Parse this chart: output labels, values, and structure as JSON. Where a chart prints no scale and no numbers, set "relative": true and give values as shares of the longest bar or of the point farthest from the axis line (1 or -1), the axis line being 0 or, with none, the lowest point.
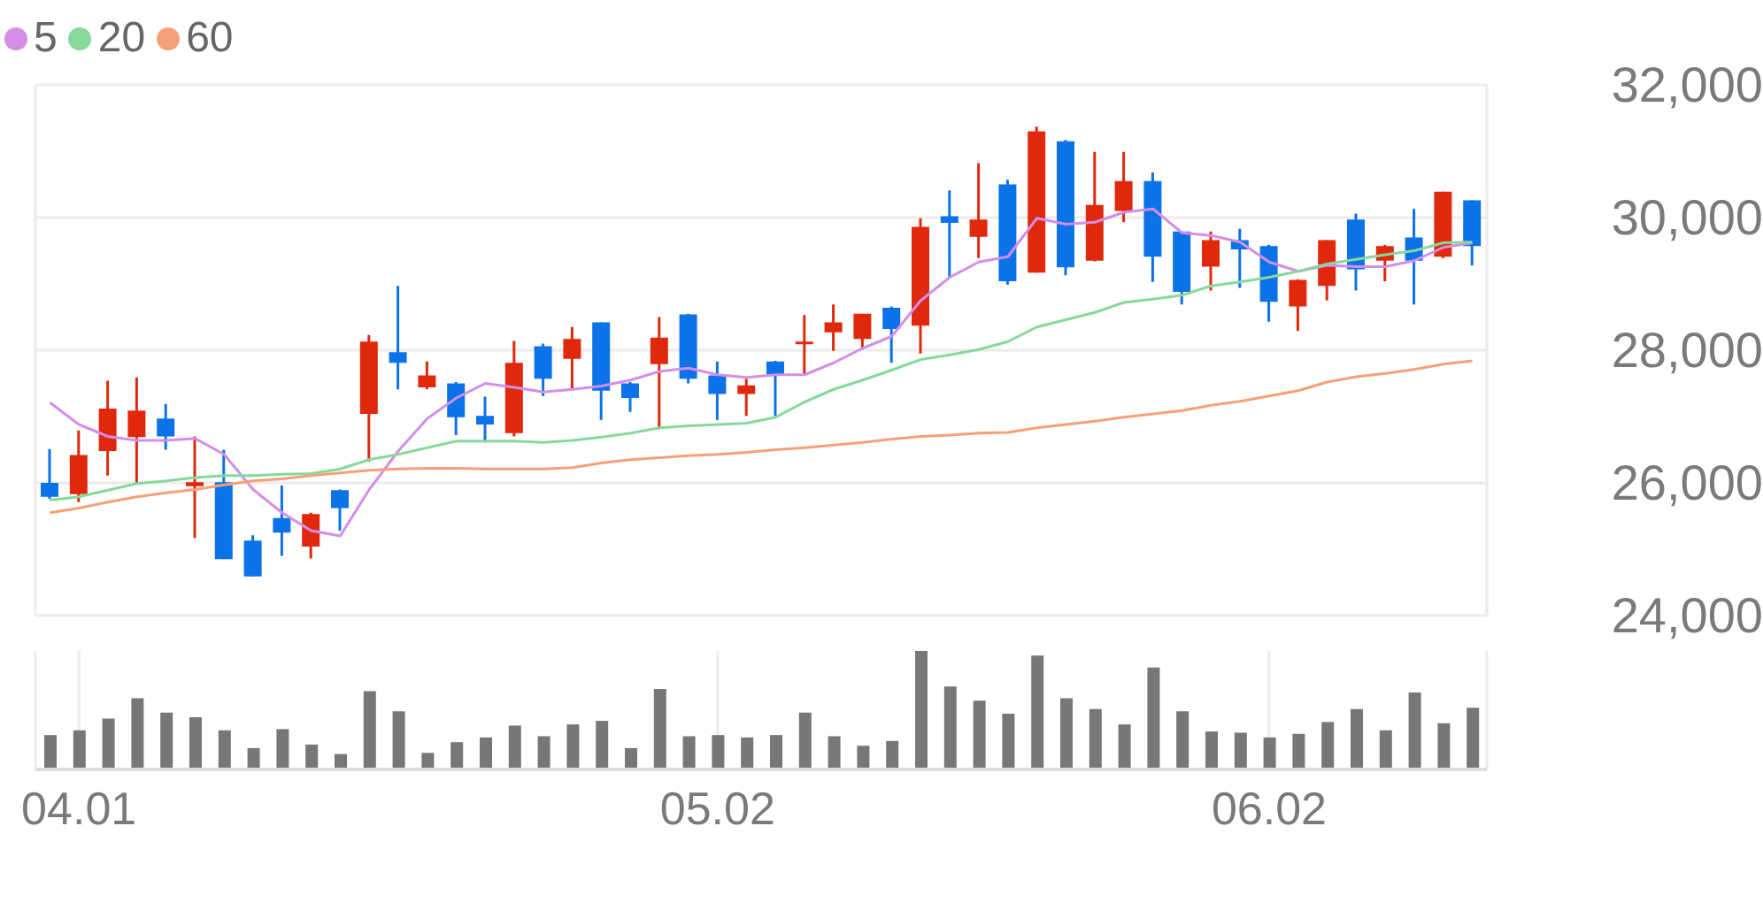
{
  "chart_data": [
    {
      "type": "candlestick",
      "categories": [
        null,
        "04.01",
        null,
        null,
        null,
        null,
        null,
        null,
        null,
        null,
        null,
        null,
        null,
        null,
        null,
        null,
        null,
        null,
        null,
        null,
        null,
        null,
        null,
        "05.02",
        null,
        null,
        null,
        null,
        null,
        null,
        null,
        null,
        null,
        null,
        null,
        null,
        null,
        null,
        null,
        null,
        null,
        null,
        "06.02",
        null,
        null,
        null,
        null,
        null,
        null,
        null
      ],
      "ohlc": [
        [
          26000,
          26510,
          25760,
          25790
        ],
        [
          25830,
          26790,
          25710,
          26420
        ],
        [
          26480,
          27540,
          26110,
          27120
        ],
        [
          26690,
          27590,
          25990,
          27090
        ],
        [
          26970,
          27190,
          26500,
          26700
        ],
        [
          25950,
          26700,
          25170,
          26010
        ],
        [
          26010,
          26500,
          24850,
          24850
        ],
        [
          25130,
          25210,
          24590,
          24590
        ],
        [
          25470,
          25960,
          24900,
          25250
        ],
        [
          25040,
          25550,
          24860,
          25530
        ],
        [
          25890,
          25900,
          25280,
          25620
        ],
        [
          27040,
          28230,
          26320,
          28130
        ],
        [
          27970,
          28970,
          27410,
          27810
        ],
        [
          27440,
          27830,
          27410,
          27620
        ],
        [
          27500,
          27520,
          26720,
          26990
        ],
        [
          27010,
          27300,
          26610,
          26880
        ],
        [
          26750,
          28140,
          26700,
          27810
        ],
        [
          28060,
          28100,
          27310,
          27570
        ],
        [
          27870,
          28350,
          27410,
          28170
        ],
        [
          28420,
          28420,
          26950,
          27390
        ],
        [
          27500,
          27520,
          27070,
          27280
        ],
        [
          27790,
          28500,
          26810,
          28190
        ],
        [
          28540,
          28550,
          27500,
          27570
        ],
        [
          27620,
          27830,
          26950,
          27340
        ],
        [
          27340,
          27570,
          27010,
          27470
        ],
        [
          27830,
          27840,
          27010,
          27630
        ],
        [
          28100,
          28530,
          27630,
          28130
        ],
        [
          28270,
          28690,
          27990,
          28420
        ],
        [
          28170,
          28550,
          28010,
          28550
        ],
        [
          28640,
          28660,
          27810,
          28320
        ],
        [
          28370,
          29990,
          27950,
          29860
        ],
        [
          30020,
          30410,
          29090,
          29920
        ],
        [
          29710,
          30820,
          29390,
          29970
        ],
        [
          30500,
          30570,
          28990,
          29040
        ],
        [
          29170,
          31370,
          29170,
          31300
        ],
        [
          31150,
          31170,
          29130,
          29250
        ],
        [
          29350,
          30990,
          29340,
          30190
        ],
        [
          30100,
          30990,
          29930,
          30550
        ],
        [
          30550,
          30680,
          29030,
          29410
        ],
        [
          29790,
          29790,
          28690,
          28880
        ],
        [
          29260,
          29790,
          28900,
          29660
        ],
        [
          29660,
          29830,
          28940,
          29520
        ],
        [
          29570,
          29590,
          28430,
          28730
        ],
        [
          28660,
          29070,
          28290,
          29060
        ],
        [
          28970,
          29660,
          28750,
          29660
        ],
        [
          29970,
          30060,
          28900,
          29220
        ],
        [
          29350,
          29590,
          29040,
          29570
        ],
        [
          29700,
          30130,
          28690,
          29350
        ],
        [
          29410,
          30390,
          29390,
          30390
        ],
        [
          30260,
          30260,
          29280,
          29570
        ]
      ],
      "colors": [
        "#0b72e8",
        "#e0290c",
        "#e0290c",
        "#e0290c",
        "#0b72e8",
        "#e0290c",
        "#0b72e8",
        "#0b72e8",
        "#0b72e8",
        "#e0290c",
        "#0b72e8",
        "#e0290c",
        "#0b72e8",
        "#e0290c",
        "#0b72e8",
        "#0b72e8",
        "#e0290c",
        "#0b72e8",
        "#e0290c",
        "#0b72e8",
        "#0b72e8",
        "#e0290c",
        "#0b72e8",
        "#0b72e8",
        "#e0290c",
        "#0b72e8",
        "#e0290c",
        "#e0290c",
        "#e0290c",
        "#0b72e8",
        "#e0290c",
        "#0b72e8",
        "#e0290c",
        "#0b72e8",
        "#e0290c",
        "#0b72e8",
        "#e0290c",
        "#e0290c",
        "#0b72e8",
        "#0b72e8",
        "#e0290c",
        "#0b72e8",
        "#0b72e8",
        "#e0290c",
        "#e0290c",
        "#0b72e8",
        "#e0290c",
        "#0b72e8",
        "#e0290c",
        "#0b72e8"
      ],
      "series": [
        {
          "name": "5",
          "type": "line",
          "color": "#d38ee8",
          "values": [
            27210,
            26880,
            26700,
            26640,
            26640,
            26670,
            26430,
            25900,
            25550,
            25280,
            25200,
            25900,
            26480,
            26970,
            27280,
            27500,
            27440,
            27370,
            27410,
            27460,
            27550,
            27680,
            27730,
            27630,
            27590,
            27630,
            27630,
            27810,
            28030,
            28210,
            28750,
            29100,
            29330,
            29410,
            29990,
            29900,
            29930,
            30080,
            30130,
            29770,
            29730,
            29630,
            29330,
            29190,
            29280,
            29260,
            29260,
            29350,
            29550,
            29620
          ]
        },
        {
          "name": "20",
          "type": "line",
          "color": "#86d99b",
          "values": [
            25740,
            25790,
            25890,
            25990,
            26030,
            26080,
            26110,
            26110,
            26130,
            26140,
            26210,
            26350,
            26430,
            26530,
            26630,
            26630,
            26630,
            26610,
            26640,
            26690,
            26750,
            26830,
            26860,
            26880,
            26900,
            26990,
            27220,
            27410,
            27550,
            27700,
            27860,
            27930,
            28010,
            28130,
            28350,
            28460,
            28570,
            28720,
            28770,
            28830,
            28970,
            29030,
            29100,
            29190,
            29300,
            29370,
            29440,
            29500,
            29620,
            29630
          ]
        },
        {
          "name": "60",
          "type": "line",
          "color": "#f5a178",
          "values": [
            25550,
            25620,
            25710,
            25790,
            25850,
            25900,
            25970,
            26030,
            26060,
            26110,
            26150,
            26190,
            26210,
            26220,
            26220,
            26210,
            26210,
            26210,
            26230,
            26300,
            26350,
            26380,
            26410,
            26430,
            26460,
            26500,
            26530,
            26570,
            26610,
            26660,
            26700,
            26720,
            26750,
            26760,
            26830,
            26880,
            26930,
            26990,
            27040,
            27090,
            27170,
            27230,
            27310,
            27390,
            27520,
            27600,
            27650,
            27710,
            27790,
            27840
          ]
        }
      ],
      "ylim": [
        24000,
        32000
      ],
      "yticks": [
        {
          "value": 24000,
          "label": "24,000"
        },
        {
          "value": 26000,
          "label": "26,000"
        },
        {
          "value": 28000,
          "label": "28,000"
        },
        {
          "value": 30000,
          "label": "30,000"
        },
        {
          "value": 32000,
          "label": "32,000"
        }
      ],
      "grid": true,
      "legend": "top left",
      "tick_labels": "y"
    },
    {
      "type": "bar",
      "relative": true,
      "color": "#777777",
      "categories": [
        null,
        "04.01",
        null,
        null,
        null,
        null,
        null,
        null,
        null,
        null,
        null,
        null,
        null,
        null,
        null,
        null,
        null,
        null,
        null,
        null,
        null,
        null,
        null,
        "05.02",
        null,
        null,
        null,
        null,
        null,
        null,
        null,
        null,
        null,
        null,
        null,
        null,
        null,
        null,
        null,
        null,
        null,
        null,
        "06.02",
        null,
        null,
        null,
        null,
        null,
        null,
        null
      ],
      "values": [
        0.29,
        0.33,
        0.43,
        0.6,
        0.48,
        0.44,
        0.33,
        0.18,
        0.34,
        0.21,
        0.13,
        0.66,
        0.49,
        0.14,
        0.23,
        0.27,
        0.37,
        0.28,
        0.38,
        0.41,
        0.18,
        0.68,
        0.28,
        0.29,
        0.27,
        0.29,
        0.48,
        0.28,
        0.2,
        0.24,
        1,
        0.7,
        0.58,
        0.47,
        0.96,
        0.6,
        0.51,
        0.38,
        0.86,
        0.49,
        0.32,
        0.31,
        0.27,
        0.3,
        0.4,
        0.51,
        0.33,
        0.65,
        0.39,
        0.52
      ],
      "grid": "x",
      "tick_labels": "x"
    }
  ]
}
